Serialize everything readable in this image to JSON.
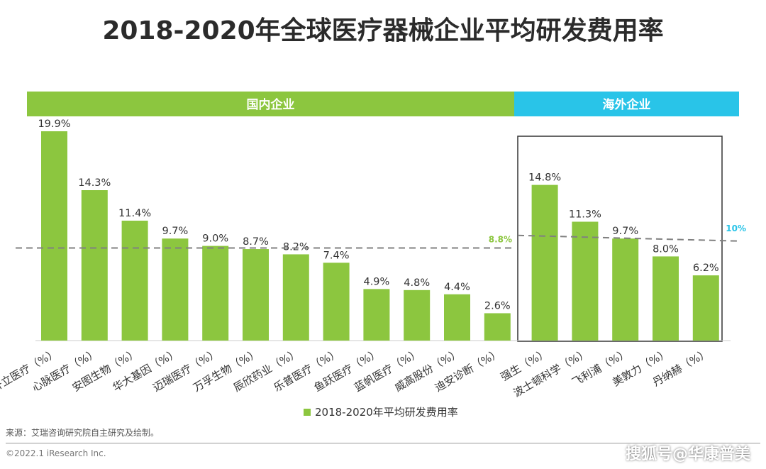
{
  "title": "2018-2020年全球医疗器械企业平均研发费用率",
  "segments": {
    "domestic": {
      "label": "国内企业",
      "color": "#8cc63f"
    },
    "overseas": {
      "label": "海外企业",
      "color": "#29c4e8"
    }
  },
  "reference_lines": {
    "domestic": {
      "label": "8.8%",
      "value": 8.8,
      "color": "#8cc63f"
    },
    "overseas": {
      "label": "10%",
      "value": 10,
      "color": "#29c4e8"
    }
  },
  "legend": {
    "label": "2018-2020年平均研发费用率"
  },
  "source": "来源：艾瑞咨询研究院自主研究及绘制。",
  "copyright": "©2022.1 iResearch Inc.",
  "watermark": "搜狐号@华康普美",
  "colors": {
    "bar": "#8cc63f",
    "box": "#333333",
    "dash": "#808080"
  },
  "chart_data": {
    "type": "bar",
    "title": "2018-2020年全球医疗器械企业平均研发费用率",
    "categories": [
      "开立医疗（%）",
      "心脉医疗（%）",
      "安图生物（%）",
      "华大基因（%）",
      "迈瑞医疗（%）",
      "万孚生物（%）",
      "辰欣药业（%）",
      "乐普医疗（%）",
      "鱼跃医疗（%）",
      "蓝帆医疗（%）",
      "威高股份（%）",
      "迪安诊断（%）",
      "强生（%）",
      "波士顿科学（%）",
      "飞利浦（%）",
      "美敦力（%）",
      "丹纳赫（%）"
    ],
    "values": [
      19.9,
      14.3,
      11.4,
      9.7,
      9.0,
      8.7,
      8.2,
      7.4,
      4.9,
      4.8,
      4.4,
      2.6,
      14.8,
      11.3,
      9.7,
      8.0,
      6.2
    ],
    "labels": [
      "19.9%",
      "14.3%",
      "11.4%",
      "9.7%",
      "9.0%",
      "8.7%",
      "8.2%",
      "7.4%",
      "4.9%",
      "4.8%",
      "4.4%",
      "2.6%",
      "14.8%",
      "11.3%",
      "9.7%",
      "8.0%",
      "6.2%"
    ],
    "series": [
      {
        "name": "2018-2020年平均研发费用率"
      }
    ],
    "groups": [
      {
        "label": "国内企业",
        "count": 12
      },
      {
        "label": "海外企业",
        "count": 5
      }
    ],
    "ylim": [
      0,
      20
    ],
    "grid": false,
    "legend_position": "bottom"
  }
}
